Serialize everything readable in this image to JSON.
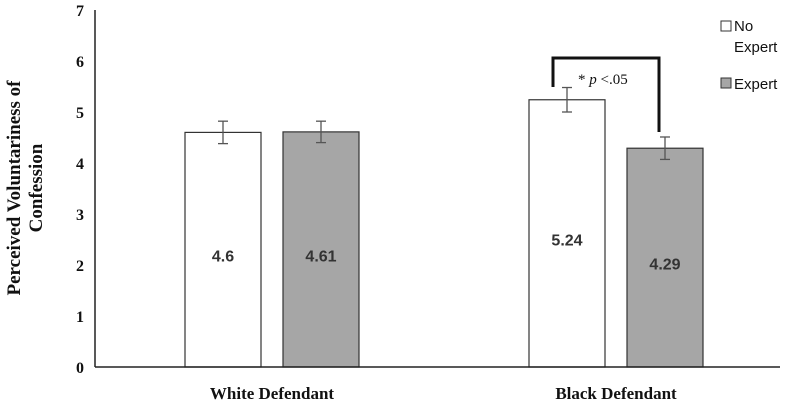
{
  "chart_data": {
    "type": "bar",
    "categories": [
      "White Defendant",
      "Black Defendant"
    ],
    "series": [
      {
        "name": "No Expert",
        "values": [
          4.6,
          5.24
        ],
        "errors": [
          0.22,
          0.24
        ],
        "color": "#ffffff"
      },
      {
        "name": "Expert",
        "values": [
          4.61,
          4.29
        ],
        "errors": [
          0.21,
          0.22
        ],
        "color": "#a6a6a6"
      }
    ],
    "data_labels": [
      [
        "4.6",
        "5.24"
      ],
      [
        "4.61",
        "4.29"
      ]
    ],
    "ylabel_lines": [
      "Perceived Voluntariness of",
      "Confession"
    ],
    "ylim": [
      0,
      7
    ],
    "yticks": [
      "0",
      "1",
      "2",
      "3",
      "4",
      "5",
      "6",
      "7"
    ],
    "legend": {
      "placement": "top-right",
      "no_expert_lines": [
        "No",
        "Expert"
      ],
      "expert_label": "Expert"
    },
    "annotation": {
      "star": "*",
      "p": "p",
      "rest": "<.05"
    }
  }
}
